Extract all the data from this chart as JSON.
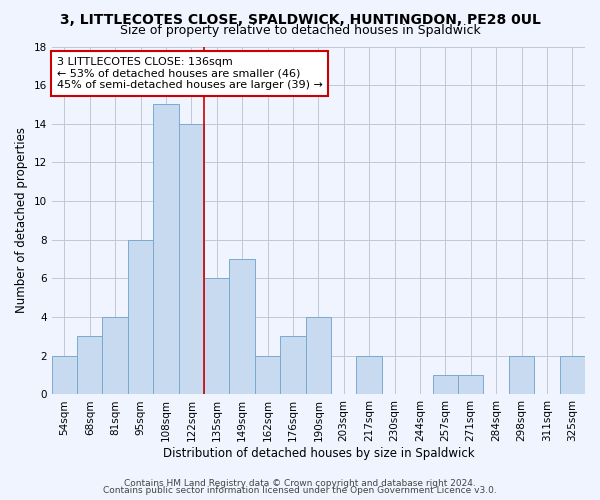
{
  "title": "3, LITTLECOTES CLOSE, SPALDWICK, HUNTINGDON, PE28 0UL",
  "subtitle": "Size of property relative to detached houses in Spaldwick",
  "xlabel": "Distribution of detached houses by size in Spaldwick",
  "ylabel": "Number of detached properties",
  "bin_labels": [
    "54sqm",
    "68sqm",
    "81sqm",
    "95sqm",
    "108sqm",
    "122sqm",
    "135sqm",
    "149sqm",
    "162sqm",
    "176sqm",
    "190sqm",
    "203sqm",
    "217sqm",
    "230sqm",
    "244sqm",
    "257sqm",
    "271sqm",
    "284sqm",
    "298sqm",
    "311sqm",
    "325sqm"
  ],
  "bar_heights": [
    2,
    3,
    4,
    8,
    15,
    14,
    6,
    7,
    2,
    3,
    4,
    0,
    2,
    0,
    0,
    1,
    1,
    0,
    2,
    0,
    2
  ],
  "bar_color": "#c8daf0",
  "bar_edge_color": "#7aaad0",
  "vline_x_index": 6,
  "vline_color": "#cc0000",
  "annotation_text": "3 LITTLECOTES CLOSE: 136sqm\n← 53% of detached houses are smaller (46)\n45% of semi-detached houses are larger (39) →",
  "annotation_box_edge": "#cc0000",
  "annotation_box_face": "#ffffff",
  "ylim": [
    0,
    18
  ],
  "yticks": [
    0,
    2,
    4,
    6,
    8,
    10,
    12,
    14,
    16,
    18
  ],
  "footer_line1": "Contains HM Land Registry data © Crown copyright and database right 2024.",
  "footer_line2": "Contains public sector information licensed under the Open Government Licence v3.0.",
  "title_fontsize": 10,
  "subtitle_fontsize": 9,
  "axis_label_fontsize": 8.5,
  "tick_fontsize": 7.5,
  "annotation_fontsize": 8,
  "footer_fontsize": 6.5,
  "bg_color": "#f0f4ff"
}
